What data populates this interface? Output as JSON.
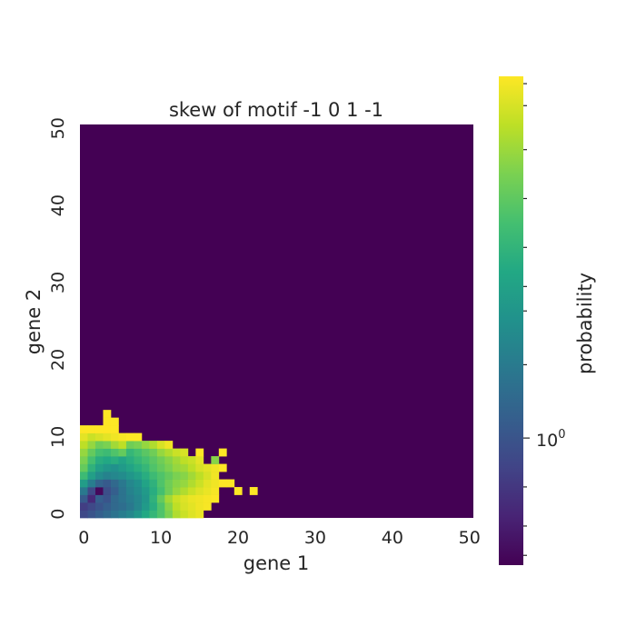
{
  "chart_data": {
    "type": "heatmap",
    "title": "skew of motif -1 0 1 -1",
    "xlabel": "gene 1",
    "ylabel": "gene 2",
    "xlim": [
      0,
      51
    ],
    "ylim": [
      0,
      51
    ],
    "xticks": [
      "0",
      "10",
      "20",
      "30",
      "40",
      "50"
    ],
    "yticks": [
      "0",
      "10",
      "20",
      "30",
      "40",
      "50"
    ],
    "colorbar": {
      "label": "probability",
      "scale": "log",
      "colormap": "viridis",
      "tick_base": "10",
      "tick_exponent": "0"
    },
    "background_value": 0,
    "nonzero_cells": [
      [
        0,
        0,
        0.22
      ],
      [
        1,
        0,
        0.26
      ],
      [
        2,
        0,
        0.3
      ],
      [
        3,
        0,
        0.34
      ],
      [
        4,
        0,
        0.38
      ],
      [
        5,
        0,
        0.42
      ],
      [
        6,
        0,
        0.46
      ],
      [
        7,
        0,
        0.52
      ],
      [
        8,
        0,
        0.6
      ],
      [
        9,
        0,
        0.66
      ],
      [
        10,
        0,
        0.72
      ],
      [
        11,
        0,
        0.8
      ],
      [
        12,
        0,
        0.88
      ],
      [
        13,
        0,
        0.92
      ],
      [
        14,
        0,
        0.95
      ],
      [
        15,
        0,
        0.97
      ],
      [
        0,
        1,
        0.18
      ],
      [
        1,
        1,
        0.22
      ],
      [
        2,
        1,
        0.26
      ],
      [
        3,
        1,
        0.3
      ],
      [
        4,
        1,
        0.34
      ],
      [
        5,
        1,
        0.36
      ],
      [
        6,
        1,
        0.4
      ],
      [
        7,
        1,
        0.46
      ],
      [
        8,
        1,
        0.54
      ],
      [
        9,
        1,
        0.62
      ],
      [
        10,
        1,
        0.72
      ],
      [
        11,
        1,
        0.82
      ],
      [
        12,
        1,
        0.9
      ],
      [
        13,
        1,
        0.94
      ],
      [
        14,
        1,
        0.96
      ],
      [
        15,
        1,
        0.98
      ],
      [
        16,
        1,
        0.99
      ],
      [
        0,
        2,
        0.28
      ],
      [
        1,
        2,
        0.12
      ],
      [
        2,
        2,
        0.3
      ],
      [
        3,
        2,
        0.26
      ],
      [
        4,
        2,
        0.34
      ],
      [
        5,
        2,
        0.38
      ],
      [
        6,
        2,
        0.42
      ],
      [
        7,
        2,
        0.46
      ],
      [
        8,
        2,
        0.52
      ],
      [
        9,
        2,
        0.64
      ],
      [
        10,
        2,
        0.76
      ],
      [
        11,
        2,
        0.86
      ],
      [
        12,
        2,
        0.92
      ],
      [
        13,
        2,
        0.95
      ],
      [
        14,
        2,
        0.97
      ],
      [
        15,
        2,
        0.98
      ],
      [
        16,
        2,
        0.99
      ],
      [
        17,
        2,
        1.0
      ],
      [
        0,
        3,
        0.4
      ],
      [
        1,
        3,
        0.22
      ],
      [
        2,
        3,
        0.02
      ],
      [
        3,
        3,
        0.24
      ],
      [
        4,
        3,
        0.3
      ],
      [
        5,
        3,
        0.38
      ],
      [
        6,
        3,
        0.44
      ],
      [
        7,
        3,
        0.48
      ],
      [
        8,
        3,
        0.54
      ],
      [
        9,
        3,
        0.62
      ],
      [
        10,
        3,
        0.7
      ],
      [
        11,
        3,
        0.78
      ],
      [
        12,
        3,
        0.84
      ],
      [
        13,
        3,
        0.88
      ],
      [
        14,
        3,
        0.92
      ],
      [
        15,
        3,
        0.95
      ],
      [
        16,
        3,
        0.97
      ],
      [
        17,
        3,
        0.99
      ],
      [
        20,
        3,
        1.0
      ],
      [
        22,
        3,
        1.0
      ],
      [
        0,
        4,
        0.55
      ],
      [
        1,
        4,
        0.42
      ],
      [
        2,
        4,
        0.32
      ],
      [
        3,
        4,
        0.28
      ],
      [
        4,
        4,
        0.34
      ],
      [
        5,
        4,
        0.4
      ],
      [
        6,
        4,
        0.46
      ],
      [
        7,
        4,
        0.5
      ],
      [
        8,
        4,
        0.58
      ],
      [
        9,
        4,
        0.64
      ],
      [
        10,
        4,
        0.72
      ],
      [
        11,
        4,
        0.78
      ],
      [
        12,
        4,
        0.82
      ],
      [
        13,
        4,
        0.84
      ],
      [
        14,
        4,
        0.88
      ],
      [
        15,
        4,
        0.92
      ],
      [
        16,
        4,
        0.96
      ],
      [
        17,
        4,
        0.98
      ],
      [
        18,
        4,
        1.0
      ],
      [
        19,
        4,
        1.0
      ],
      [
        0,
        5,
        0.68
      ],
      [
        1,
        5,
        0.56
      ],
      [
        2,
        5,
        0.48
      ],
      [
        3,
        5,
        0.44
      ],
      [
        4,
        5,
        0.46
      ],
      [
        5,
        5,
        0.48
      ],
      [
        6,
        5,
        0.52
      ],
      [
        7,
        5,
        0.56
      ],
      [
        8,
        5,
        0.62
      ],
      [
        9,
        5,
        0.68
      ],
      [
        10,
        5,
        0.72
      ],
      [
        11,
        5,
        0.76
      ],
      [
        12,
        5,
        0.8
      ],
      [
        13,
        5,
        0.82
      ],
      [
        14,
        5,
        0.86
      ],
      [
        15,
        5,
        0.9
      ],
      [
        16,
        5,
        0.94
      ],
      [
        17,
        5,
        0.98
      ],
      [
        0,
        6,
        0.76
      ],
      [
        1,
        6,
        0.64
      ],
      [
        2,
        6,
        0.56
      ],
      [
        3,
        6,
        0.52
      ],
      [
        4,
        6,
        0.5
      ],
      [
        5,
        6,
        0.54
      ],
      [
        6,
        6,
        0.58
      ],
      [
        7,
        6,
        0.62
      ],
      [
        8,
        6,
        0.66
      ],
      [
        9,
        6,
        0.72
      ],
      [
        10,
        6,
        0.76
      ],
      [
        11,
        6,
        0.8
      ],
      [
        12,
        6,
        0.84
      ],
      [
        13,
        6,
        0.86
      ],
      [
        14,
        6,
        0.9
      ],
      [
        15,
        6,
        0.94
      ],
      [
        16,
        6,
        0.96
      ],
      [
        17,
        6,
        0.98
      ],
      [
        18,
        6,
        1.0
      ],
      [
        0,
        7,
        0.8
      ],
      [
        1,
        7,
        0.7
      ],
      [
        2,
        7,
        0.62
      ],
      [
        3,
        7,
        0.6
      ],
      [
        4,
        7,
        0.62
      ],
      [
        5,
        7,
        0.58
      ],
      [
        6,
        7,
        0.62
      ],
      [
        7,
        7,
        0.66
      ],
      [
        8,
        7,
        0.7
      ],
      [
        9,
        7,
        0.74
      ],
      [
        10,
        7,
        0.78
      ],
      [
        11,
        7,
        0.82
      ],
      [
        12,
        7,
        0.86
      ],
      [
        13,
        7,
        0.9
      ],
      [
        14,
        7,
        0.92
      ],
      [
        15,
        7,
        0.96
      ],
      [
        17,
        7,
        0.82
      ],
      [
        0,
        8,
        0.84
      ],
      [
        1,
        8,
        0.76
      ],
      [
        2,
        8,
        0.7
      ],
      [
        3,
        8,
        0.68
      ],
      [
        4,
        8,
        0.72
      ],
      [
        5,
        8,
        0.76
      ],
      [
        6,
        8,
        0.66
      ],
      [
        7,
        8,
        0.7
      ],
      [
        8,
        8,
        0.74
      ],
      [
        9,
        8,
        0.78
      ],
      [
        10,
        8,
        0.84
      ],
      [
        11,
        8,
        0.88
      ],
      [
        12,
        8,
        0.92
      ],
      [
        13,
        8,
        0.94
      ],
      [
        15,
        8,
        1.0
      ],
      [
        18,
        8,
        1.0
      ],
      [
        0,
        9,
        0.9
      ],
      [
        1,
        9,
        0.84
      ],
      [
        2,
        9,
        0.78
      ],
      [
        3,
        9,
        0.8
      ],
      [
        4,
        9,
        0.86
      ],
      [
        5,
        9,
        0.9
      ],
      [
        6,
        9,
        0.78
      ],
      [
        7,
        9,
        0.8
      ],
      [
        8,
        9,
        0.84
      ],
      [
        9,
        9,
        0.88
      ],
      [
        10,
        9,
        0.94
      ],
      [
        11,
        9,
        0.98
      ],
      [
        0,
        10,
        0.96
      ],
      [
        1,
        10,
        0.92
      ],
      [
        2,
        10,
        0.94
      ],
      [
        3,
        10,
        0.96
      ],
      [
        4,
        10,
        0.98
      ],
      [
        5,
        10,
        0.99
      ],
      [
        6,
        10,
        1.0
      ],
      [
        7,
        10,
        1.0
      ],
      [
        0,
        11,
        1.0
      ],
      [
        1,
        11,
        1.0
      ],
      [
        2,
        11,
        1.0
      ],
      [
        3,
        11,
        1.0
      ],
      [
        4,
        11,
        1.0
      ],
      [
        3,
        12,
        1.0
      ],
      [
        4,
        12,
        1.0
      ],
      [
        3,
        13,
        1.0
      ]
    ]
  }
}
